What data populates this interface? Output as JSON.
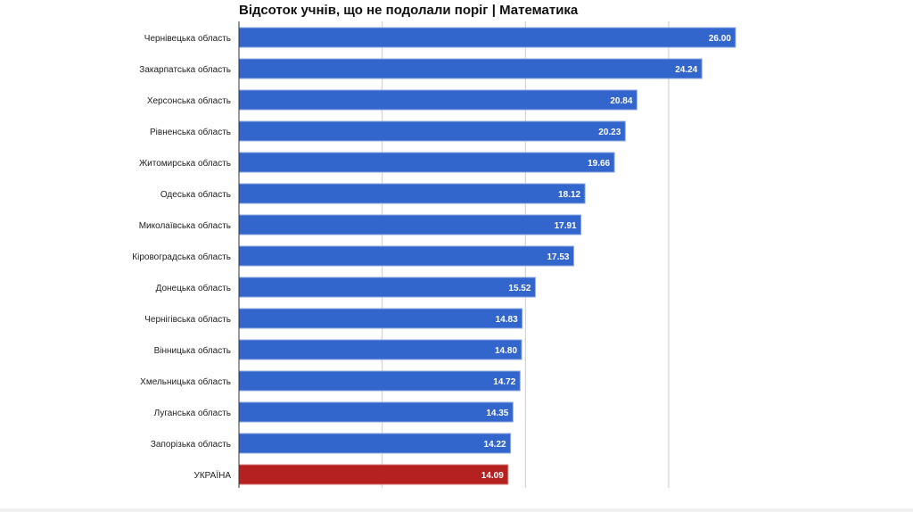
{
  "chart_data": {
    "type": "bar",
    "orientation": "horizontal",
    "title": "Відсоток учнів, що не подолали поріг | Математика",
    "xlabel": "",
    "ylabel": "",
    "xlim": [
      0,
      30
    ],
    "gridlines": [
      7.5,
      15,
      22.5
    ],
    "grid": true,
    "categories": [
      "Чернівецька область",
      "Закарпатська область",
      "Херсонська область",
      "Рівненська область",
      "Житомирська область",
      "Одеська область",
      "Миколаївська область",
      "Кіровоградська область",
      "Донецька область",
      "Чернігівська область",
      "Вінницька область",
      "Хмельницька область",
      "Луганська область",
      "Запорізька область",
      "УКРАЇНА"
    ],
    "values": [
      26.0,
      24.24,
      20.84,
      20.23,
      19.66,
      18.12,
      17.91,
      17.53,
      15.52,
      14.83,
      14.8,
      14.72,
      14.35,
      14.22,
      14.09
    ],
    "labels": [
      "26.00",
      "24.24",
      "20.84",
      "20.23",
      "19.66",
      "18.12",
      "17.91",
      "17.53",
      "15.52",
      "14.83",
      "14.80",
      "14.72",
      "14.35",
      "14.22",
      "14.09"
    ],
    "colors": {
      "default": "#3366cc",
      "highlight": "#b52020",
      "highlight_category": "УКРАЇНА"
    }
  }
}
